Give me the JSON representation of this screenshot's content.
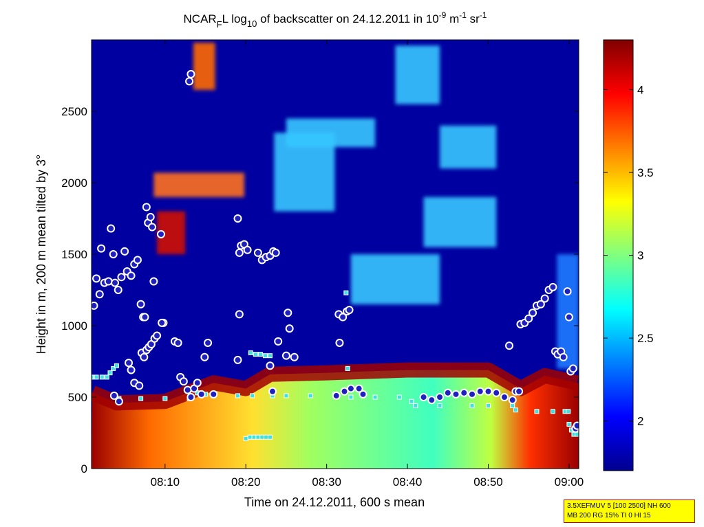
{
  "chart_data": [
    {
      "type": "heatmap",
      "title": {
        "main_a": "NCAR",
        "main_sub": "F",
        "main_b": "L log",
        "log_sub": "10",
        "main_c": " of backscatter on 24.12.2011 in 10",
        "exp1": "-9",
        "main_d": " m",
        "exp2": "-1",
        "main_e": " sr",
        "exp3": "-1"
      },
      "xlabel": "Time on 24.12.2011, 600 s mean",
      "ylabel": "Height in m, 200 m mean tilted by 3°",
      "x_ticks": [
        "08:10",
        "08:20",
        "08:30",
        "08:40",
        "08:50",
        "09:00"
      ],
      "x_tick_minutes": [
        10,
        20,
        30,
        40,
        50,
        60
      ],
      "x_range_minutes": [
        0.9,
        61.2
      ],
      "y_ticks": [
        0,
        500,
        1000,
        1500,
        2000,
        2500
      ],
      "ylim": [
        0,
        3000
      ],
      "colorbar": {
        "ticks": [
          2,
          2.5,
          3,
          3.5,
          4
        ],
        "range": [
          1.7,
          4.3
        ],
        "colormap": "jet"
      },
      "aerosol_layer_top_m": [
        [
          1,
          530
        ],
        [
          4,
          460
        ],
        [
          10,
          470
        ],
        [
          16,
          600
        ],
        [
          20,
          560
        ],
        [
          23,
          660
        ],
        [
          30,
          670
        ],
        [
          40,
          690
        ],
        [
          50,
          690
        ],
        [
          54,
          560
        ],
        [
          57,
          650
        ],
        [
          61,
          600
        ]
      ],
      "cloud_layers": [
        {
          "t": [
            13.5,
            16.2
          ],
          "h": [
            2650,
            2980
          ]
        },
        {
          "t": [
            8.6,
            19.8
          ],
          "h": [
            1900,
            2070
          ]
        },
        {
          "t": [
            9.0,
            12.5
          ],
          "h": [
            1500,
            1800
          ]
        },
        {
          "t": [
            23.5,
            31.0
          ],
          "h": [
            1800,
            2350
          ]
        },
        {
          "t": [
            25.0,
            36.0
          ],
          "h": [
            2250,
            2450
          ]
        },
        {
          "t": [
            38.5,
            44.0
          ],
          "h": [
            2550,
            2960
          ]
        },
        {
          "t": [
            33.0,
            44.0
          ],
          "h": [
            1150,
            1500
          ]
        },
        {
          "t": [
            42.0,
            51.0
          ],
          "h": [
            1550,
            1900
          ]
        },
        {
          "t": [
            44.0,
            51.0
          ],
          "h": [
            2100,
            2400
          ]
        },
        {
          "t": [
            58.5,
            61.2
          ],
          "h": [
            700,
            1500
          ]
        }
      ],
      "boundary_points": {
        "circles_marker": "circle",
        "squares_marker": "square",
        "upper_circles": [
          [
            1.2,
            1140
          ],
          [
            1.5,
            1330
          ],
          [
            1.9,
            1220
          ],
          [
            2.1,
            1540
          ],
          [
            2.5,
            1300
          ],
          [
            3.0,
            1310
          ],
          [
            3.3,
            1680
          ],
          [
            3.6,
            1500
          ],
          [
            3.8,
            1300
          ],
          [
            4.2,
            1250
          ],
          [
            4.6,
            1340
          ],
          [
            5.0,
            1520
          ],
          [
            5.3,
            1380
          ],
          [
            5.8,
            1350
          ],
          [
            6.2,
            1430
          ],
          [
            6.6,
            1460
          ],
          [
            7.0,
            1150
          ],
          [
            7.3,
            1060
          ],
          [
            7.5,
            1060
          ],
          [
            7.7,
            1830
          ],
          [
            7.9,
            1720
          ],
          [
            8.2,
            1760
          ],
          [
            8.4,
            1690
          ],
          [
            8.6,
            1310
          ],
          [
            9.5,
            1640
          ],
          [
            9.8,
            1020
          ],
          [
            13.0,
            2710
          ],
          [
            13.2,
            2760
          ],
          [
            19.0,
            1750
          ],
          [
            19.2,
            1510
          ],
          [
            19.4,
            1560
          ],
          [
            19.8,
            1570
          ],
          [
            20.2,
            1530
          ],
          [
            21.5,
            1510
          ],
          [
            22.0,
            1460
          ],
          [
            22.5,
            1480
          ],
          [
            23.0,
            1490
          ],
          [
            23.4,
            1520
          ],
          [
            23.7,
            1510
          ],
          [
            25.2,
            1090
          ],
          [
            31.5,
            1080
          ],
          [
            32.0,
            1060
          ],
          [
            32.5,
            1100
          ],
          [
            32.8,
            1110
          ],
          [
            54.0,
            1010
          ],
          [
            54.5,
            1020
          ],
          [
            55.0,
            1050
          ],
          [
            55.5,
            1090
          ],
          [
            56.0,
            1140
          ],
          [
            56.5,
            1150
          ],
          [
            57.0,
            1190
          ],
          [
            57.5,
            1250
          ],
          [
            58.0,
            1270
          ],
          [
            59.8,
            1240
          ],
          [
            60.0,
            1060
          ]
        ],
        "lower_circles": [
          [
            3.7,
            510
          ],
          [
            4.3,
            470
          ],
          [
            5.5,
            740
          ],
          [
            5.8,
            690
          ],
          [
            6.2,
            600
          ],
          [
            6.8,
            580
          ],
          [
            7.1,
            810
          ],
          [
            7.4,
            780
          ],
          [
            7.7,
            830
          ],
          [
            8.0,
            850
          ],
          [
            8.3,
            870
          ],
          [
            8.7,
            910
          ],
          [
            9.0,
            930
          ],
          [
            9.6,
            1020
          ],
          [
            11.2,
            890
          ],
          [
            11.6,
            880
          ],
          [
            11.9,
            640
          ],
          [
            12.3,
            610
          ],
          [
            12.8,
            550
          ],
          [
            13.2,
            500
          ],
          [
            13.6,
            560
          ],
          [
            14.0,
            600
          ],
          [
            14.5,
            520
          ],
          [
            14.9,
            780
          ],
          [
            15.3,
            880
          ],
          [
            16.0,
            520
          ],
          [
            19.0,
            760
          ],
          [
            19.2,
            1080
          ],
          [
            23.0,
            720
          ],
          [
            23.3,
            540
          ],
          [
            24.0,
            890
          ],
          [
            25.0,
            790
          ],
          [
            25.4,
            980
          ],
          [
            26.0,
            780
          ],
          [
            31.2,
            510
          ],
          [
            31.6,
            880
          ],
          [
            32.2,
            540
          ],
          [
            33.0,
            560
          ],
          [
            34.0,
            560
          ],
          [
            34.5,
            520
          ],
          [
            42.0,
            500
          ],
          [
            43.0,
            480
          ],
          [
            44.0,
            500
          ],
          [
            45.0,
            530
          ],
          [
            46.0,
            520
          ],
          [
            47.0,
            530
          ],
          [
            48.0,
            520
          ],
          [
            49.0,
            540
          ],
          [
            50.0,
            540
          ],
          [
            51.0,
            530
          ],
          [
            52.0,
            500
          ],
          [
            52.6,
            860
          ],
          [
            53.0,
            480
          ],
          [
            53.4,
            540
          ],
          [
            53.8,
            540
          ],
          [
            58.3,
            820
          ],
          [
            58.6,
            800
          ],
          [
            59.0,
            820
          ],
          [
            59.3,
            780
          ],
          [
            60.2,
            680
          ],
          [
            60.5,
            700
          ],
          [
            60.8,
            280
          ],
          [
            61.0,
            300
          ]
        ],
        "squares": [
          [
            0.9,
            640
          ],
          [
            1.5,
            640
          ],
          [
            2.2,
            640
          ],
          [
            2.8,
            640
          ],
          [
            3.2,
            670
          ],
          [
            3.6,
            700
          ],
          [
            4.0,
            720
          ],
          [
            4.3,
            490
          ],
          [
            7.0,
            490
          ],
          [
            10.0,
            490
          ],
          [
            13.0,
            490
          ],
          [
            14.0,
            530
          ],
          [
            15.0,
            520
          ],
          [
            16.0,
            510
          ],
          [
            19.0,
            510
          ],
          [
            20.8,
            510
          ],
          [
            20.0,
            210
          ],
          [
            20.5,
            220
          ],
          [
            21.0,
            220
          ],
          [
            21.5,
            220
          ],
          [
            22.0,
            220
          ],
          [
            22.5,
            220
          ],
          [
            23.0,
            220
          ],
          [
            20.6,
            810
          ],
          [
            21.2,
            800
          ],
          [
            21.8,
            800
          ],
          [
            22.4,
            790
          ],
          [
            23.0,
            790
          ],
          [
            23.3,
            510
          ],
          [
            25.0,
            510
          ],
          [
            28.0,
            510
          ],
          [
            31.0,
            520
          ],
          [
            32.4,
            1230
          ],
          [
            32.6,
            700
          ],
          [
            33.0,
            500
          ],
          [
            36.0,
            500
          ],
          [
            39.0,
            500
          ],
          [
            40.5,
            470
          ],
          [
            41.0,
            440
          ],
          [
            44.0,
            440
          ],
          [
            48.0,
            440
          ],
          [
            50.0,
            440
          ],
          [
            53.0,
            440
          ],
          [
            53.4,
            410
          ],
          [
            56.0,
            400
          ],
          [
            58.0,
            400
          ],
          [
            59.5,
            400
          ],
          [
            59.9,
            400
          ],
          [
            60.0,
            310
          ],
          [
            60.3,
            270
          ],
          [
            60.6,
            240
          ],
          [
            61.0,
            240
          ]
        ]
      }
    }
  ],
  "info_badge": {
    "line1": "3.5XEFMUV 5 [100 2500] NH 600",
    "line2": "MB 200 RG 15% TI 0 HI 15"
  }
}
